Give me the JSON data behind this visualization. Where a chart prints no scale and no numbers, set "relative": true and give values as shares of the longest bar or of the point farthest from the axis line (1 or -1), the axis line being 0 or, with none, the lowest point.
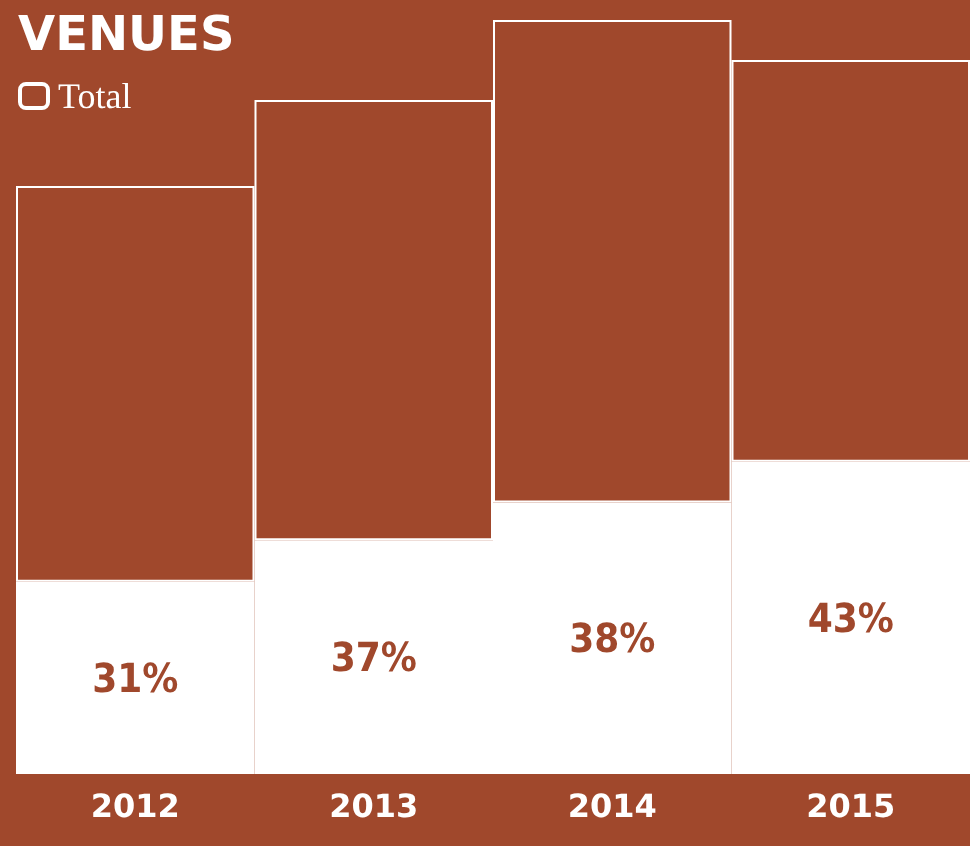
{
  "chart_data": {
    "type": "bar",
    "title": "VENUES",
    "categories": [
      "2012",
      "2013",
      "2014",
      "2015"
    ],
    "stacked": true,
    "relative": true,
    "legend": "top left",
    "annotations": [
      "31%",
      "37%",
      "38%",
      "43%"
    ],
    "series": [
      {
        "color": "#ffffff",
        "values": [
          0.255,
          0.31,
          0.36,
          0.414
        ]
      },
      {
        "name": "Total",
        "color": "#a0482c",
        "values": [
          0.525,
          0.584,
          0.64,
          0.533
        ]
      }
    ]
  }
}
